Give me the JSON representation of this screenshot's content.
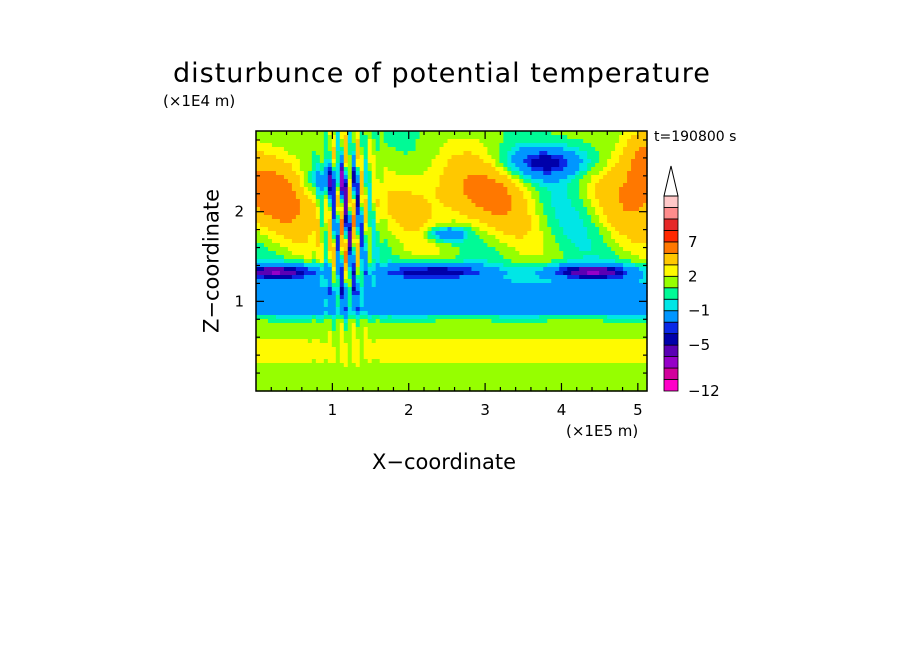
{
  "chart_data": {
    "type": "heatmap",
    "title": "disturbunce of potential temperature",
    "xlabel": "X−coordinate",
    "ylabel": "Z−coordinate",
    "x_multiplier": "(×1E5 m)",
    "y_multiplier": "(×1E4 m)",
    "time_label": "t=190800 s",
    "xlim": [
      0,
      5.12
    ],
    "ylim": [
      0,
      2.9
    ],
    "x_ticks": [
      {
        "value": 1,
        "label": "1"
      },
      {
        "value": 2,
        "label": "2"
      },
      {
        "value": 3,
        "label": "3"
      },
      {
        "value": 4,
        "label": "4"
      },
      {
        "value": 5,
        "label": "5"
      }
    ],
    "y_ticks": [
      {
        "value": 1,
        "label": "1"
      },
      {
        "value": 2,
        "label": "2"
      }
    ],
    "colorbar": {
      "levels": [
        -12,
        -10,
        -8,
        -6,
        -5,
        -4,
        -3,
        -1,
        0,
        1,
        2,
        3,
        5,
        7,
        8,
        9,
        10
      ],
      "colors": [
        "#ff00c8",
        "#d2009c",
        "#9600c8",
        "#5a00b4",
        "#0000aa",
        "#0a28e6",
        "#0096ff",
        "#00e6e6",
        "#00fa96",
        "#96ff00",
        "#fffa00",
        "#ffc800",
        "#ff7800",
        "#ff2800",
        "#e62828",
        "#ff8c8c",
        "#ffc8c8"
      ],
      "labels": [
        {
          "value": 7,
          "label": "7"
        },
        {
          "value": 2,
          "label": "2"
        },
        {
          "value": -1,
          "label": "−1"
        },
        {
          "value": -5,
          "label": "−5"
        },
        {
          "value": -12,
          "label": "−12"
        }
      ],
      "extend": "max"
    },
    "field_description": "Contoured anomaly field: warm orange/red band at upper levels (z 1.6-2.9), blue cold band near z 1.2-1.4 with cyan below, green near z 1.0, yellow/orange band z 0.2-0.7; wave-like vertical striations around x 0.8-1.6."
  }
}
